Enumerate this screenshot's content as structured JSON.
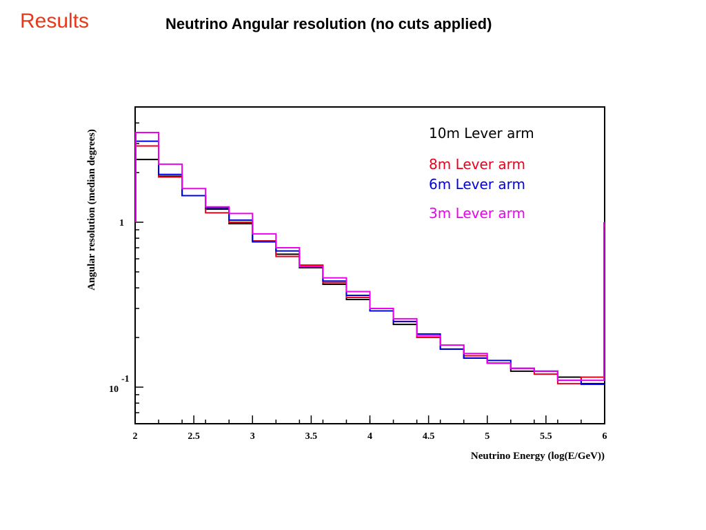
{
  "slide": {
    "heading": "Results",
    "title": "Neutrino Angular resolution (no cuts applied)"
  },
  "chart_data": {
    "type": "line",
    "step": true,
    "xlabel": "Neutrino Energy (log(E/GeV))",
    "ylabel": "Angular resolution (median degrees)",
    "xlim": [
      2,
      6
    ],
    "ylim": [
      0.06,
      5.0
    ],
    "y_scale": "log",
    "x_ticks": [
      2,
      2.5,
      3,
      3.5,
      4,
      4.5,
      5,
      5.5,
      6
    ],
    "x_tick_labels": [
      "2",
      "2.5",
      "3",
      "3.5",
      "4",
      "4.5",
      "5",
      "5.5",
      "6"
    ],
    "y_tick_labels": [
      {
        "value": 1,
        "base": "1",
        "exp": ""
      },
      {
        "value": 0.1,
        "base": "10",
        "exp": "-1"
      }
    ],
    "legend_position": "top-right",
    "bin_edges": [
      2.0,
      2.2,
      2.4,
      2.6,
      2.8,
      3.0,
      3.2,
      3.4,
      3.6,
      3.8,
      4.0,
      4.2,
      4.4,
      4.6,
      4.8,
      5.0,
      5.2,
      5.4,
      5.6,
      5.8,
      6.0
    ],
    "series": [
      {
        "name": "10m Lever arm",
        "color": "#000000",
        "values": [
          2.4,
          1.9,
          1.45,
          1.2,
          0.98,
          0.77,
          0.64,
          0.53,
          0.42,
          0.34,
          0.29,
          0.24,
          0.2,
          0.17,
          0.15,
          0.14,
          0.125,
          0.125,
          0.115,
          0.105
        ]
      },
      {
        "name": "8m Lever arm",
        "color": "#e8001c",
        "values": [
          2.9,
          1.88,
          1.45,
          1.14,
          1.0,
          0.77,
          0.62,
          0.55,
          0.43,
          0.35,
          0.3,
          0.25,
          0.2,
          0.18,
          0.155,
          0.14,
          0.13,
          0.12,
          0.105,
          0.115
        ]
      },
      {
        "name": "6m Lever arm",
        "color": "#0000e0",
        "values": [
          3.1,
          1.95,
          1.45,
          1.22,
          1.03,
          0.76,
          0.67,
          0.54,
          0.44,
          0.36,
          0.29,
          0.25,
          0.21,
          0.17,
          0.15,
          0.145,
          0.13,
          0.125,
          0.11,
          0.104
        ]
      },
      {
        "name": "3m Lever arm",
        "color": "#ee00ee",
        "values": [
          3.5,
          2.25,
          1.6,
          1.24,
          1.13,
          0.85,
          0.7,
          0.54,
          0.46,
          0.38,
          0.3,
          0.26,
          0.205,
          0.18,
          0.16,
          0.14,
          0.13,
          0.125,
          0.11,
          0.11
        ]
      }
    ]
  }
}
